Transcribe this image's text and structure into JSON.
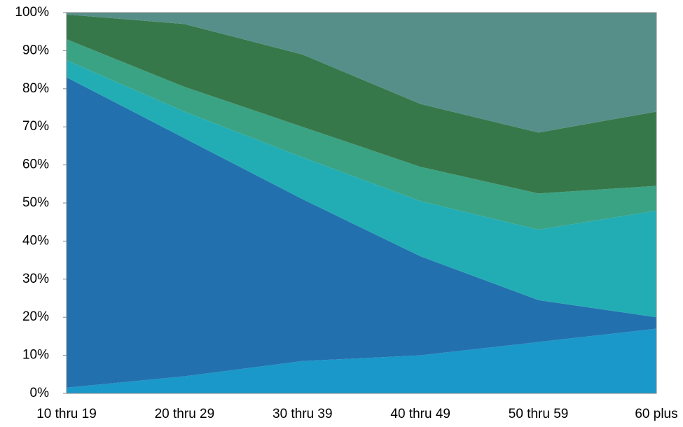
{
  "chart_data": {
    "type": "stacked_area",
    "categories": [
      "10 thru 19",
      "20 thru 29",
      "30 thru 39",
      "40 thru 49",
      "50 thru 59",
      "60 plus"
    ],
    "series": [
      {
        "color": "#1a98c9",
        "values": [
          1.5,
          4.5,
          8.5,
          10,
          13.5,
          17
        ]
      },
      {
        "color": "#2370ae",
        "values": [
          81.5,
          62.5,
          42.5,
          26,
          11,
          3
        ]
      },
      {
        "color": "#22adb4",
        "values": [
          4.5,
          7,
          11,
          14.5,
          18.5,
          28
        ]
      },
      {
        "color": "#3aa384",
        "values": [
          5.5,
          6.5,
          8,
          9,
          9.5,
          6.5
        ]
      },
      {
        "color": "#37784a",
        "values": [
          6.5,
          16.5,
          19,
          16.5,
          16,
          19.5
        ]
      },
      {
        "color": "#568f89",
        "values": [
          0.5,
          3,
          11,
          24,
          31.5,
          26
        ]
      }
    ],
    "ylim": [
      0,
      100
    ],
    "yticks": [
      {
        "value": 0,
        "label": "0%"
      },
      {
        "value": 10,
        "label": "10%"
      },
      {
        "value": 20,
        "label": "20%"
      },
      {
        "value": 30,
        "label": "30%"
      },
      {
        "value": 40,
        "label": "40%"
      },
      {
        "value": 50,
        "label": "50%"
      },
      {
        "value": 60,
        "label": "60%"
      },
      {
        "value": 70,
        "label": "70%"
      },
      {
        "value": 80,
        "label": "80%"
      },
      {
        "value": 90,
        "label": "90%"
      },
      {
        "value": 100,
        "label": "100%"
      }
    ]
  }
}
